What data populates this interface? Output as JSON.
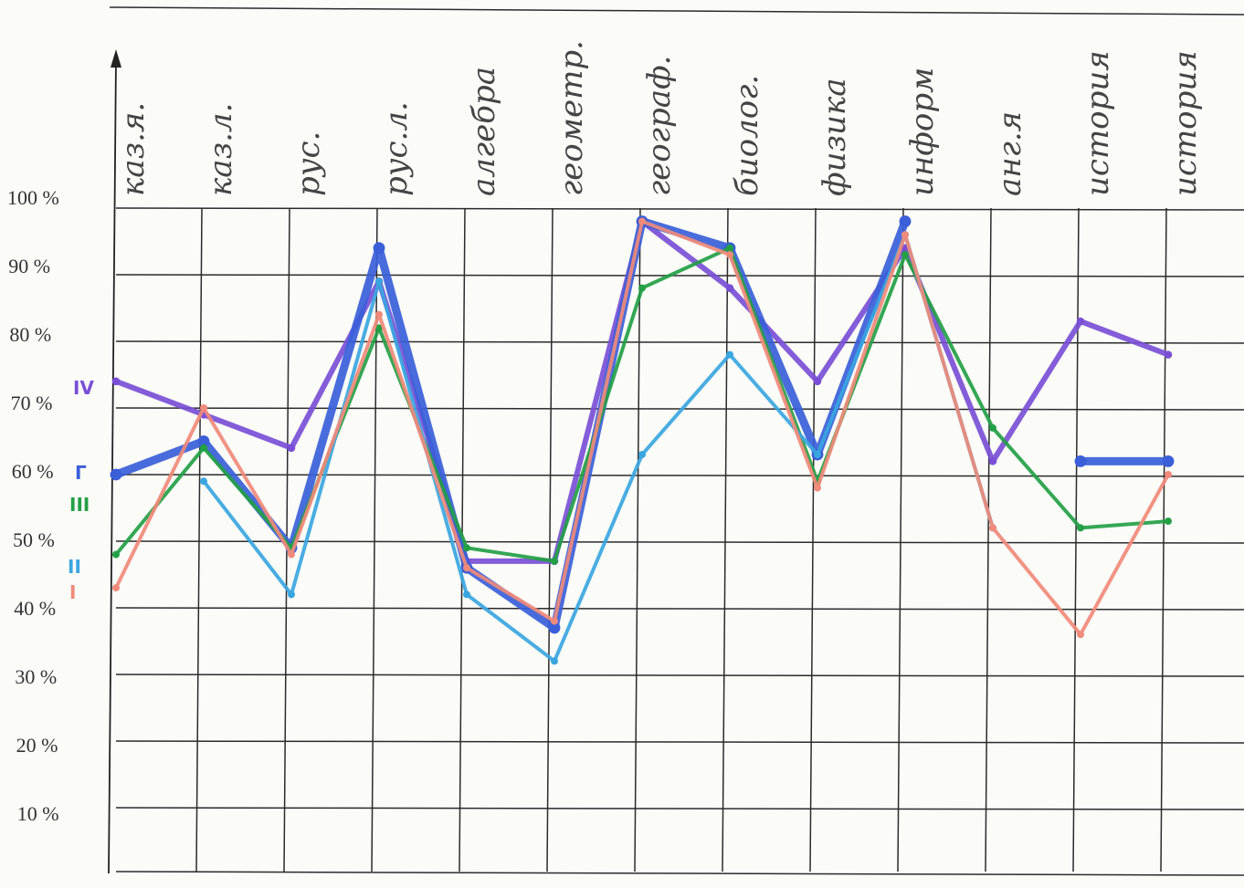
{
  "chart_data": {
    "type": "line",
    "categories": [
      "каз.я.",
      "каз.л.",
      "рус.",
      "рус.л.",
      "алгебра",
      "геометр.",
      "географ.",
      "биолог.",
      "физика",
      "информ",
      "анг.я",
      "история",
      "история"
    ],
    "yticks": [
      "100 %",
      "90 %",
      "80 %",
      "70 %",
      "60 %",
      "50 %",
      "40 %",
      "30 %",
      "20 %",
      "10 %"
    ],
    "ylim": [
      10,
      100
    ],
    "grid": true,
    "series": [
      {
        "name": "IV",
        "color": "#7a4fd6",
        "width": 6,
        "values": [
          74,
          69,
          64,
          89,
          47,
          47,
          98,
          88,
          74,
          94,
          62,
          83,
          78
        ]
      },
      {
        "name": "Г",
        "color": "#3a5fd9",
        "width": 9,
        "values": [
          60,
          65,
          49,
          94,
          46,
          37,
          98,
          94,
          63,
          98,
          null,
          62,
          62
        ]
      },
      {
        "name": "III",
        "color": "#23a045",
        "width": 4,
        "values": [
          48,
          64,
          49,
          82,
          49,
          47,
          88,
          94,
          59,
          93,
          67,
          52,
          53
        ]
      },
      {
        "name": "II",
        "color": "#3aa6e0",
        "width": 4,
        "values": [
          null,
          59,
          42,
          89,
          42,
          32,
          63,
          78,
          63,
          96,
          52,
          null,
          null
        ]
      },
      {
        "name": "I",
        "color": "#f08a7a",
        "width": 4,
        "values": [
          43,
          70,
          48,
          84,
          46,
          38,
          98,
          93,
          58,
          96,
          52,
          36,
          60
        ]
      }
    ]
  }
}
